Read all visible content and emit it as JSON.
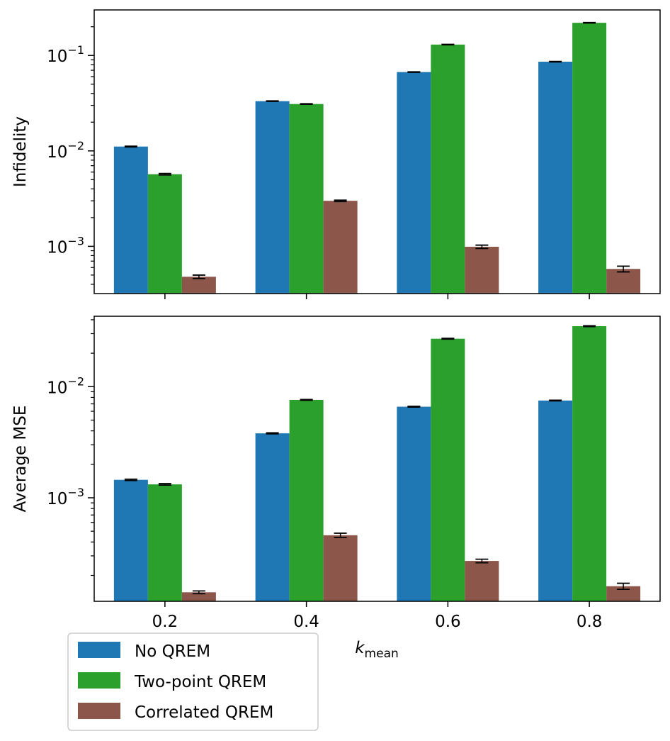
{
  "chart_data": [
    {
      "type": "bar",
      "yscale": "log",
      "ylabel": "Infidelity",
      "xlabel": "",
      "ylim": [
        0.00032,
        0.3
      ],
      "categories": [
        "0.2",
        "0.4",
        "0.6",
        "0.8"
      ],
      "yticks": [
        {
          "value": 0.001,
          "base": "10",
          "exp": "−3"
        },
        {
          "value": 0.01,
          "base": "10",
          "exp": "−2"
        },
        {
          "value": 0.1,
          "base": "10",
          "exp": "−1"
        }
      ],
      "series": [
        {
          "name": "No QREM",
          "values": [
            0.0111,
            0.0332,
            0.067,
            0.086
          ],
          "errors": [
            0.0001,
            0.0002,
            0.0004,
            0.0005
          ]
        },
        {
          "name": "Two-point QREM",
          "values": [
            0.0057,
            0.031,
            0.13,
            0.22
          ],
          "errors": [
            0.0001,
            0.0002,
            0.0008,
            0.0015
          ]
        },
        {
          "name": "Correlated QREM",
          "values": [
            0.00048,
            0.003,
            0.00099,
            0.00058
          ],
          "errors": [
            2e-05,
            5e-05,
            4e-05,
            4e-05
          ]
        }
      ]
    },
    {
      "type": "bar",
      "yscale": "log",
      "ylabel": "Average MSE",
      "xlabel_base": "k",
      "xlabel_sub": "mean",
      "ylim": [
        0.000117,
        0.043
      ],
      "categories": [
        "0.2",
        "0.4",
        "0.6",
        "0.8"
      ],
      "yticks": [
        {
          "value": 0.001,
          "base": "10",
          "exp": "−3"
        },
        {
          "value": 0.01,
          "base": "10",
          "exp": "−2"
        }
      ],
      "series": [
        {
          "name": "No QREM",
          "values": [
            0.00145,
            0.0038,
            0.0066,
            0.0075
          ],
          "errors": [
            2e-05,
            4e-05,
            5e-05,
            5e-05
          ]
        },
        {
          "name": "Two-point QREM",
          "values": [
            0.00132,
            0.0076,
            0.027,
            0.035
          ],
          "errors": [
            2e-05,
            6e-05,
            0.0002,
            0.0003
          ]
        },
        {
          "name": "Correlated QREM",
          "values": [
            0.000141,
            0.00046,
            0.00027,
            0.00016
          ],
          "errors": [
            4e-06,
            2e-05,
            1e-05,
            1e-05
          ]
        }
      ]
    }
  ],
  "legend": {
    "items": [
      {
        "label": "No QREM",
        "color": "#1f77b4"
      },
      {
        "label": "Two-point QREM",
        "color": "#2ca02c"
      },
      {
        "label": "Correlated QREM",
        "color": "#8c564b"
      }
    ]
  },
  "colors": [
    "#1f77b4",
    "#2ca02c",
    "#8c564b"
  ]
}
